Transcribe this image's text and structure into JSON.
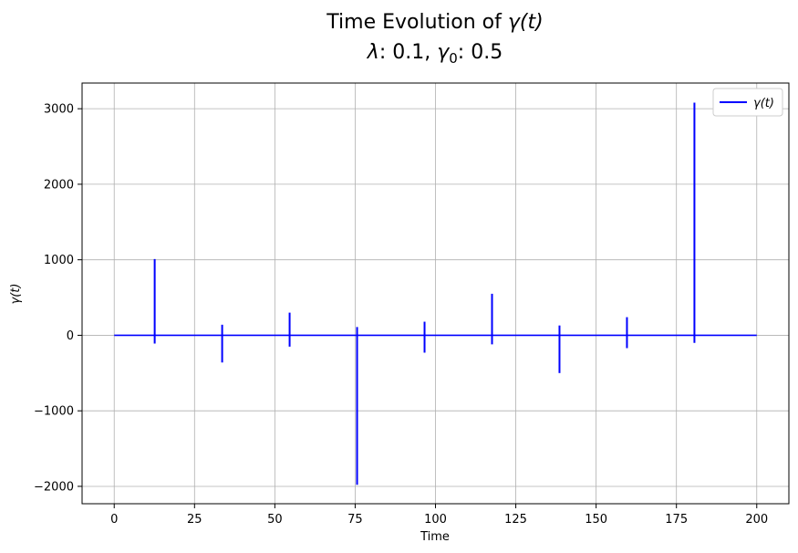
{
  "chart_data": {
    "type": "line",
    "title_line1": {
      "prefix": "Time Evolution of ",
      "math": "γ(t)"
    },
    "title_line2": {
      "lambda_sym": "λ",
      "lambda_val": ": 0.1, ",
      "gamma_sym": "γ",
      "gamma_sub": "0",
      "gamma_val": ": 0.5"
    },
    "xlabel": "Time",
    "ylabel": "γ(t)",
    "xlim": [
      -10,
      210
    ],
    "ylim": [
      -2230,
      3340
    ],
    "xticks": [
      0,
      25,
      50,
      75,
      100,
      125,
      150,
      175,
      200
    ],
    "yticks": [
      -2000,
      -1000,
      0,
      1000,
      2000,
      3000
    ],
    "ytick_labels": [
      "−2000",
      "−1000",
      "0",
      "1000",
      "2000",
      "3000"
    ],
    "grid": true,
    "legend": {
      "position": "top-right",
      "entries": [
        "γ(t)"
      ]
    },
    "series": [
      {
        "name": "γ(t)",
        "color": "#0000ff",
        "baseline": [
          [
            0,
            0
          ],
          [
            200,
            0
          ]
        ],
        "spikes": [
          {
            "t": 12.6,
            "max": 1010,
            "min": -110
          },
          {
            "t": 33.6,
            "max": 140,
            "min": -360
          },
          {
            "t": 54.6,
            "max": 300,
            "min": -150
          },
          {
            "t": 75.6,
            "max": 110,
            "min": -1980
          },
          {
            "t": 96.6,
            "max": 180,
            "min": -230
          },
          {
            "t": 117.6,
            "max": 550,
            "min": -120
          },
          {
            "t": 138.6,
            "max": 130,
            "min": -500
          },
          {
            "t": 159.6,
            "max": 240,
            "min": -170
          },
          {
            "t": 180.6,
            "max": 3080,
            "min": -100
          }
        ]
      }
    ]
  }
}
